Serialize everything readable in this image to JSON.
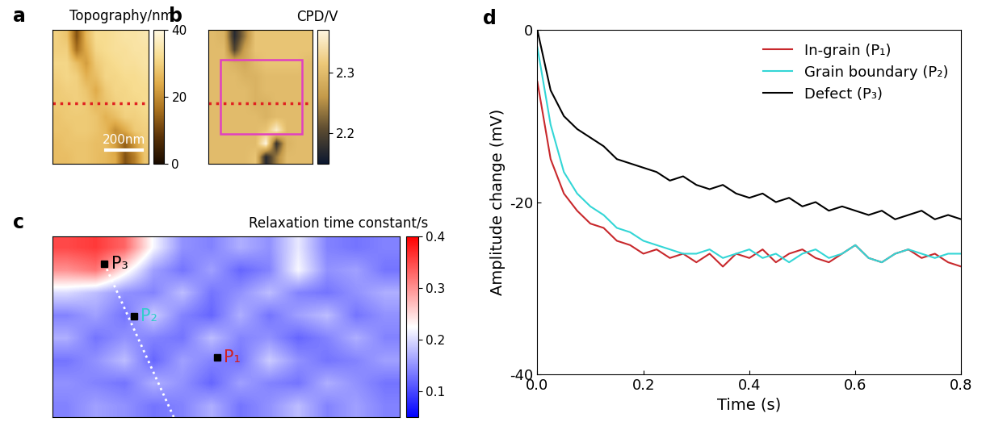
{
  "chart_data": [
    {
      "type": "heatmap",
      "label": "a",
      "title": "Topography/nm",
      "scale_bar": "200nm",
      "tick_labels": false,
      "clim": [
        0,
        40
      ],
      "cticks": [
        0,
        20,
        40
      ],
      "cells": [
        [
          30,
          28,
          12,
          26,
          32,
          32,
          33,
          34,
          34,
          35
        ],
        [
          30,
          30,
          16,
          24,
          31,
          32,
          33,
          33,
          34,
          34
        ],
        [
          31,
          31,
          27,
          22,
          29,
          31,
          32,
          33,
          33,
          34
        ],
        [
          30,
          31,
          30,
          25,
          27,
          31,
          31,
          32,
          32,
          33
        ],
        [
          29,
          30,
          30,
          28,
          24,
          29,
          31,
          31,
          32,
          32
        ],
        [
          29,
          29,
          30,
          29,
          26,
          28,
          30,
          31,
          31,
          32
        ],
        [
          28,
          29,
          29,
          29,
          28,
          25,
          27,
          30,
          30,
          31
        ],
        [
          28,
          28,
          29,
          29,
          28,
          26,
          20,
          24,
          29,
          30
        ],
        [
          27,
          28,
          28,
          28,
          27,
          27,
          22,
          14,
          22,
          29
        ],
        [
          27,
          27,
          28,
          28,
          27,
          26,
          24,
          12,
          18,
          28
        ]
      ]
    },
    {
      "type": "heatmap",
      "label": "b",
      "title": "CPD/V",
      "tick_labels": false,
      "clim": [
        2.15,
        2.37
      ],
      "cticks": [
        2.2,
        2.3
      ],
      "cells": [
        [
          2.3,
          2.29,
          2.17,
          2.24,
          2.31,
          2.31,
          2.31,
          2.31,
          2.31,
          2.31
        ],
        [
          2.3,
          2.3,
          2.2,
          2.27,
          2.31,
          2.31,
          2.31,
          2.31,
          2.31,
          2.31
        ],
        [
          2.3,
          2.3,
          2.29,
          2.28,
          2.3,
          2.31,
          2.31,
          2.31,
          2.31,
          2.3
        ],
        [
          2.3,
          2.3,
          2.3,
          2.29,
          2.29,
          2.3,
          2.3,
          2.3,
          2.3,
          2.3
        ],
        [
          2.3,
          2.3,
          2.3,
          2.3,
          2.29,
          2.3,
          2.3,
          2.3,
          2.3,
          2.3
        ],
        [
          2.3,
          2.3,
          2.3,
          2.3,
          2.29,
          2.29,
          2.3,
          2.3,
          2.3,
          2.3
        ],
        [
          2.3,
          2.3,
          2.3,
          2.3,
          2.3,
          2.29,
          2.3,
          2.3,
          2.3,
          2.3
        ],
        [
          2.3,
          2.3,
          2.3,
          2.3,
          2.3,
          2.31,
          2.36,
          2.3,
          2.3,
          2.3
        ],
        [
          2.3,
          2.3,
          2.3,
          2.3,
          2.3,
          2.37,
          2.18,
          2.29,
          2.3,
          2.3
        ],
        [
          2.3,
          2.3,
          2.3,
          2.3,
          2.31,
          2.17,
          2.24,
          2.3,
          2.3,
          2.3
        ]
      ]
    },
    {
      "type": "heatmap",
      "label": "c",
      "title": "Relaxation time constant/s",
      "tick_labels": false,
      "clim": [
        0.05,
        0.4
      ],
      "cticks": [
        0.1,
        0.2,
        0.3,
        0.4
      ],
      "annotations": [
        {
          "text": "P₃",
          "color": "#000000"
        },
        {
          "text": "P₂",
          "color": "#33cccc"
        },
        {
          "text": "P₁",
          "color": "#d02020"
        }
      ],
      "cells": [
        [
          0.35,
          0.36,
          0.33,
          0.22,
          0.15,
          0.14,
          0.17,
          0.15,
          0.21,
          0.14,
          0.13,
          0.14
        ],
        [
          0.3,
          0.32,
          0.24,
          0.16,
          0.13,
          0.16,
          0.12,
          0.14,
          0.22,
          0.15,
          0.16,
          0.13
        ],
        [
          0.2,
          0.18,
          0.15,
          0.14,
          0.18,
          0.13,
          0.15,
          0.18,
          0.14,
          0.13,
          0.15,
          0.17
        ],
        [
          0.14,
          0.16,
          0.13,
          0.19,
          0.14,
          0.12,
          0.17,
          0.13,
          0.16,
          0.18,
          0.13,
          0.15
        ],
        [
          0.17,
          0.13,
          0.15,
          0.14,
          0.13,
          0.18,
          0.14,
          0.15,
          0.12,
          0.14,
          0.17,
          0.14
        ],
        [
          0.13,
          0.15,
          0.18,
          0.12,
          0.16,
          0.14,
          0.13,
          0.19,
          0.15,
          0.13,
          0.14,
          0.16
        ],
        [
          0.15,
          0.14,
          0.13,
          0.17,
          0.15,
          0.12,
          0.16,
          0.14,
          0.13,
          0.17,
          0.15,
          0.13
        ],
        [
          0.14,
          0.16,
          0.15,
          0.13,
          0.14,
          0.17,
          0.13,
          0.15,
          0.18,
          0.14,
          0.16,
          0.14
        ]
      ]
    },
    {
      "type": "line",
      "label": "d",
      "x_label": "Time (s)",
      "y_label": "Amplitude change (mV)",
      "xlim": [
        0.0,
        0.8
      ],
      "xticks": [
        0.0,
        0.2,
        0.4,
        0.6,
        0.8
      ],
      "ylim": [
        -40,
        0
      ],
      "yticks": [
        -40,
        -20,
        0
      ],
      "legend": "upper right",
      "x": [
        0.0,
        0.025,
        0.05,
        0.075,
        0.1,
        0.125,
        0.15,
        0.175,
        0.2,
        0.225,
        0.25,
        0.275,
        0.3,
        0.325,
        0.35,
        0.375,
        0.4,
        0.425,
        0.45,
        0.475,
        0.5,
        0.525,
        0.55,
        0.575,
        0.6,
        0.625,
        0.65,
        0.675,
        0.7,
        0.725,
        0.75,
        0.775,
        0.8
      ],
      "series": [
        {
          "name": "In-grain (P₁)",
          "color": "#c8282c",
          "values": [
            -6,
            -15,
            -19,
            -21,
            -22.5,
            -23,
            -24.5,
            -25,
            -26,
            -25.5,
            -26.5,
            -26,
            -27,
            -26,
            -27.5,
            -26,
            -26.5,
            -25.5,
            -27,
            -26,
            -25.5,
            -26.5,
            -27,
            -26,
            -25,
            -26.5,
            -27,
            -26,
            -25.5,
            -26.5,
            -26,
            -27,
            -27.5
          ]
        },
        {
          "name": "Grain boundary (P₂)",
          "color": "#33d6d6",
          "values": [
            -2,
            -11,
            -16.5,
            -19,
            -20.5,
            -21.5,
            -23,
            -23.5,
            -24.5,
            -25,
            -25.5,
            -26,
            -26,
            -25.5,
            -26.5,
            -26,
            -25.5,
            -26.5,
            -26,
            -27,
            -26,
            -25.5,
            -26.5,
            -26,
            -25,
            -26.5,
            -27,
            -26,
            -25.5,
            -26,
            -26.5,
            -26,
            -26
          ]
        },
        {
          "name": "Defect (P₃)",
          "color": "#000000",
          "values": [
            0,
            -7,
            -10,
            -11.5,
            -12.5,
            -13.5,
            -15,
            -15.5,
            -16,
            -16.5,
            -17.5,
            -17,
            -18,
            -18.5,
            -18,
            -19,
            -19.5,
            -19,
            -20,
            -19.5,
            -20.5,
            -20,
            -21,
            -20.5,
            -21,
            -21.5,
            -21,
            -22,
            -21.5,
            -21,
            -22,
            -21.5,
            -22
          ]
        }
      ]
    }
  ]
}
